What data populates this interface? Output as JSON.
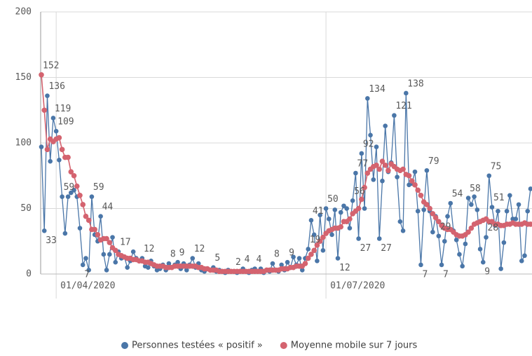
{
  "chart_data": {
    "type": "line",
    "x": [
      "27/03/2020",
      "28/03/2020",
      "29/03/2020",
      "30/03/2020",
      "31/03/2020",
      "01/04/2020",
      "02/04/2020",
      "03/04/2020",
      "04/04/2020",
      "05/04/2020",
      "06/04/2020",
      "07/04/2020",
      "08/04/2020",
      "09/04/2020",
      "10/04/2020",
      "11/04/2020",
      "12/04/2020",
      "13/04/2020",
      "14/04/2020",
      "15/04/2020",
      "16/04/2020",
      "17/04/2020",
      "18/04/2020",
      "19/04/2020",
      "20/04/2020",
      "21/04/2020",
      "22/04/2020",
      "23/04/2020",
      "24/04/2020",
      "25/04/2020",
      "26/04/2020",
      "27/04/2020",
      "28/04/2020",
      "29/04/2020",
      "30/04/2020",
      "01/05/2020",
      "02/05/2020",
      "03/05/2020",
      "04/05/2020",
      "05/05/2020",
      "06/05/2020",
      "07/05/2020",
      "08/05/2020",
      "09/05/2020",
      "10/05/2020",
      "11/05/2020",
      "12/05/2020",
      "13/05/2020",
      "14/05/2020",
      "15/05/2020",
      "16/05/2020",
      "17/05/2020",
      "18/05/2020",
      "19/05/2020",
      "20/05/2020",
      "21/05/2020",
      "22/05/2020",
      "23/05/2020",
      "24/05/2020",
      "25/05/2020",
      "26/05/2020",
      "27/05/2020",
      "28/05/2020",
      "29/05/2020",
      "30/05/2020",
      "31/05/2020",
      "01/06/2020",
      "02/06/2020",
      "03/06/2020",
      "04/06/2020",
      "05/06/2020",
      "06/06/2020",
      "07/06/2020",
      "08/06/2020",
      "09/06/2020",
      "10/06/2020",
      "11/06/2020",
      "12/06/2020",
      "13/06/2020",
      "14/06/2020",
      "15/06/2020",
      "16/06/2020",
      "17/06/2020",
      "18/06/2020",
      "19/06/2020",
      "20/06/2020",
      "21/06/2020",
      "22/06/2020",
      "23/06/2020",
      "24/06/2020",
      "25/06/2020",
      "26/06/2020",
      "27/06/2020",
      "28/06/2020",
      "29/06/2020",
      "30/06/2020",
      "01/07/2020",
      "02/07/2020",
      "03/07/2020",
      "04/07/2020",
      "05/07/2020",
      "06/07/2020",
      "07/07/2020",
      "08/07/2020",
      "09/07/2020",
      "10/07/2020",
      "11/07/2020",
      "12/07/2020",
      "13/07/2020",
      "14/07/2020",
      "15/07/2020",
      "16/07/2020",
      "17/07/2020",
      "18/07/2020",
      "19/07/2020",
      "20/07/2020",
      "21/07/2020",
      "22/07/2020",
      "23/07/2020",
      "24/07/2020",
      "25/07/2020",
      "26/07/2020",
      "27/07/2020",
      "28/07/2020",
      "29/07/2020",
      "30/07/2020",
      "31/07/2020",
      "01/08/2020",
      "02/08/2020",
      "03/08/2020",
      "04/08/2020",
      "05/08/2020",
      "06/08/2020",
      "07/08/2020",
      "08/08/2020",
      "09/08/2020",
      "10/08/2020",
      "11/08/2020",
      "12/08/2020",
      "13/08/2020",
      "14/08/2020",
      "15/08/2020",
      "16/08/2020",
      "17/08/2020",
      "18/08/2020",
      "19/08/2020",
      "20/08/2020",
      "21/08/2020",
      "22/08/2020",
      "23/08/2020",
      "24/08/2020",
      "25/08/2020",
      "26/08/2020",
      "27/08/2020",
      "28/08/2020",
      "29/08/2020",
      "30/08/2020",
      "31/08/2020",
      "01/09/2020",
      "02/09/2020",
      "03/09/2020",
      "04/09/2020",
      "05/09/2020",
      "06/09/2020",
      "07/09/2020",
      "08/09/2020"
    ],
    "series": [
      {
        "name": "Personnes testées « positif »",
        "color": "#4a76a8",
        "values": [
          97,
          33,
          136,
          86,
          119,
          109,
          87,
          59,
          31,
          59,
          62,
          64,
          59,
          35,
          7,
          12,
          3,
          59,
          30,
          25,
          44,
          15,
          3,
          15,
          28,
          9,
          17,
          12,
          13,
          5,
          10,
          17,
          12,
          10,
          12,
          6,
          5,
          10,
          6,
          3,
          4,
          7,
          3,
          8,
          5,
          7,
          9,
          4,
          8,
          3,
          7,
          12,
          5,
          8,
          3,
          2,
          4,
          3,
          5,
          2,
          3,
          2,
          1,
          3,
          2,
          2,
          1,
          2,
          4,
          2,
          1,
          3,
          4,
          2,
          4,
          1,
          3,
          2,
          8,
          3,
          2,
          7,
          3,
          9,
          5,
          13,
          7,
          12,
          3,
          12,
          19,
          41,
          30,
          10,
          45,
          18,
          50,
          42,
          30,
          49,
          12,
          47,
          52,
          50,
          35,
          56,
          77,
          27,
          92,
          50,
          134,
          106,
          72,
          97,
          27,
          71,
          113,
          78,
          85,
          121,
          74,
          40,
          33,
          138,
          68,
          69,
          78,
          48,
          7,
          49,
          79,
          48,
          32,
          44,
          29,
          7,
          25,
          44,
          54,
          33,
          26,
          15,
          6,
          23,
          58,
          53,
          59,
          49,
          19,
          9,
          28,
          75,
          51,
          37,
          48,
          4,
          24,
          48,
          60,
          42,
          42,
          53,
          10,
          14,
          48,
          65
        ],
        "value_labels": [
          null,
          "33",
          "136",
          null,
          "119",
          "109",
          null,
          "59",
          null,
          null,
          null,
          null,
          null,
          null,
          "7",
          null,
          null,
          "59",
          null,
          null,
          "44",
          null,
          null,
          null,
          null,
          null,
          "17",
          null,
          null,
          null,
          null,
          null,
          null,
          null,
          "12",
          null,
          null,
          null,
          null,
          null,
          null,
          null,
          null,
          "8",
          null,
          null,
          "9",
          null,
          null,
          null,
          null,
          "12",
          null,
          null,
          null,
          null,
          null,
          null,
          "5",
          null,
          null,
          null,
          null,
          null,
          null,
          "2",
          null,
          null,
          "4",
          null,
          null,
          null,
          "4",
          null,
          null,
          null,
          null,
          null,
          "8",
          null,
          null,
          null,
          null,
          "9",
          null,
          null,
          null,
          null,
          null,
          null,
          "19",
          "41",
          null,
          null,
          null,
          null,
          "50",
          null,
          null,
          null,
          "12",
          null,
          null,
          null,
          null,
          "56",
          "77",
          "27",
          "92",
          null,
          "134",
          null,
          null,
          null,
          "27",
          null,
          null,
          null,
          null,
          "121",
          null,
          null,
          null,
          "138",
          null,
          null,
          null,
          null,
          "7",
          null,
          "79",
          null,
          null,
          null,
          "29",
          "7",
          null,
          null,
          "54",
          null,
          null,
          null,
          null,
          null,
          "58",
          null,
          null,
          null,
          null,
          "9",
          "28",
          "75",
          "51",
          null,
          null,
          null,
          null,
          null,
          null,
          null,
          null,
          null,
          null,
          null,
          null,
          "65"
        ]
      },
      {
        "name": "Moyenne mobile sur 7 jours",
        "color": "#d4636f",
        "values": [
          152,
          125,
          95,
          103,
          101,
          103,
          104,
          95,
          89,
          89,
          78,
          75,
          67,
          60,
          53,
          44,
          41,
          34,
          34,
          30,
          26,
          27,
          27,
          24,
          20,
          18,
          15,
          14,
          13,
          12,
          12,
          11,
          11,
          10,
          10,
          9,
          9,
          8,
          7,
          6,
          6,
          6,
          5,
          5,
          5,
          6,
          6,
          6,
          6,
          6,
          6,
          6,
          6,
          5,
          5,
          4,
          4,
          3,
          3,
          3,
          2,
          2,
          2,
          2,
          2,
          2,
          2,
          2,
          2,
          2,
          2,
          2,
          2,
          2,
          2,
          2,
          3,
          3,
          3,
          3,
          3,
          4,
          4,
          4,
          5,
          5,
          6,
          6,
          6,
          8,
          12,
          15,
          18,
          22,
          25,
          28,
          31,
          33,
          34,
          35,
          35,
          36,
          40,
          40,
          42,
          46,
          48,
          50,
          57,
          66,
          77,
          80,
          82,
          83,
          80,
          86,
          83,
          79,
          84,
          82,
          80,
          79,
          80,
          76,
          75,
          71,
          68,
          64,
          60,
          55,
          53,
          50,
          46,
          43,
          40,
          37,
          35,
          34,
          34,
          32,
          30,
          29,
          29,
          30,
          32,
          35,
          38,
          39,
          40,
          41,
          42,
          40,
          40,
          38,
          38,
          37,
          37,
          38,
          38,
          39,
          38,
          38,
          38,
          39,
          38,
          38
        ],
        "value_labels": [
          "152",
          null,
          null,
          null,
          null,
          null,
          null,
          null,
          null,
          null,
          null,
          null,
          null,
          null,
          null,
          null,
          null,
          null,
          null,
          null,
          null,
          null,
          null,
          null,
          null,
          null,
          null,
          null,
          null,
          null,
          null,
          null,
          null,
          null,
          null,
          null,
          null,
          null,
          null,
          null,
          null,
          null,
          null,
          null,
          null,
          null,
          null,
          null,
          null,
          null,
          null,
          null,
          null,
          null,
          null,
          null,
          null,
          null,
          null,
          null,
          null,
          null,
          null,
          null,
          null,
          null,
          null,
          null,
          null,
          null,
          null,
          null,
          null,
          null,
          null,
          null,
          null,
          null,
          null,
          null,
          null,
          null,
          null,
          null,
          null,
          null,
          null,
          null,
          null,
          null,
          null,
          null,
          null,
          null,
          null,
          null,
          null,
          null,
          null,
          null,
          null,
          null,
          null,
          null,
          null,
          null,
          null,
          null,
          null,
          null,
          null,
          null,
          null,
          null,
          null,
          null,
          null,
          null,
          null,
          null,
          null,
          null,
          null,
          null,
          null,
          null,
          null,
          null,
          null,
          null,
          null,
          null,
          null,
          null,
          null,
          null,
          null,
          null,
          null,
          null,
          null,
          null,
          null,
          null,
          null,
          null,
          null,
          null,
          null,
          null,
          null,
          null,
          null,
          null,
          null,
          null,
          null,
          null,
          null,
          null,
          null,
          null,
          null,
          null,
          null,
          null
        ]
      }
    ],
    "ylim": [
      0,
      200
    ],
    "yticks": [
      0,
      50,
      100,
      150,
      200
    ],
    "xticks": [
      "01/04/2020",
      "01/07/2020"
    ],
    "grid": true,
    "legend": "bottom"
  }
}
